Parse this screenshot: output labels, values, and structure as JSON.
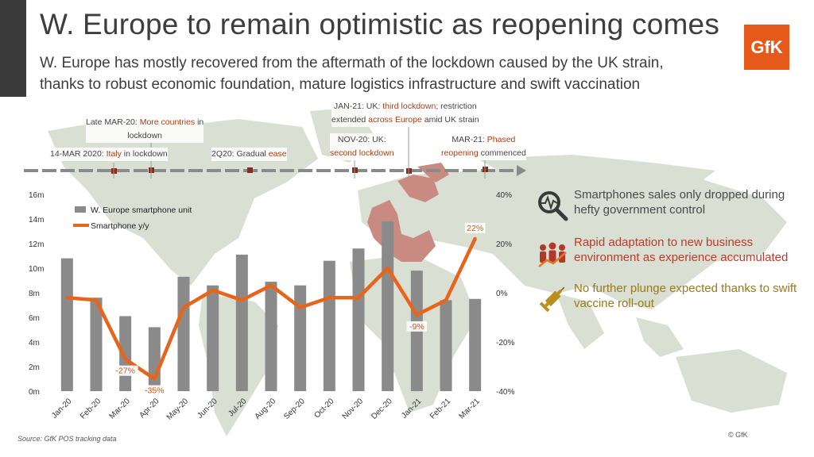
{
  "header": {
    "title": "W. Europe to remain optimistic as reopening comes",
    "subtitle_line1": "W. Europe has mostly recovered from the aftermath of the lockdown caused by the UK strain,",
    "subtitle_line2": "thanks to robust economic foundation, mature logistics infrastructure and swift vaccination",
    "logo_text": "GfK"
  },
  "timeline": {
    "events": [
      {
        "pre": "14-MAR 2020: ",
        "hl": "Italy",
        "post": " in lockdown"
      },
      {
        "pre": "Late MAR-20: ",
        "hl": "More countries",
        "post": " in",
        "line2": "lockdown"
      },
      {
        "pre": "2Q20: Gradual ",
        "hl": "ease",
        "post": ""
      },
      {
        "pre": "NOV-20: UK:",
        "hl": "second lockdown",
        "post": ""
      },
      {
        "pre": "JAN-21: UK: ",
        "hl": "third lockdown",
        "post": "; restriction",
        "line2_pre": "extended ",
        "line2_hl": "across Europe",
        "line2_post": " amid UK strain"
      },
      {
        "pre": "MAR-21: ",
        "hl": "Phased",
        "post": "",
        "line2_hl": "reopening",
        "line2_post": " commenced"
      }
    ]
  },
  "chart_data": {
    "type": "bar+line",
    "categories": [
      "Jan-20",
      "Feb-20",
      "Mar-20",
      "Apr-20",
      "May-20",
      "Jun-20",
      "Jul-20",
      "Aug-20",
      "Sep-20",
      "Oct-20",
      "Nov-20",
      "Dec-20",
      "Jan-21",
      "Feb-21",
      "Mar-21"
    ],
    "series": [
      {
        "name": "W. Europe smartphone unit",
        "type": "bar",
        "axis": "left",
        "values": [
          10.8,
          7.6,
          6.1,
          5.2,
          9.3,
          8.6,
          11.1,
          8.9,
          8.6,
          10.6,
          11.6,
          13.8,
          9.8,
          7.4,
          7.5
        ]
      },
      {
        "name": "Smartphone y/y",
        "type": "line",
        "axis": "right",
        "values": [
          -2,
          -3,
          -27,
          -35,
          -6,
          1,
          -3,
          3,
          -6,
          -2,
          -2,
          10,
          -9,
          -3,
          22
        ]
      }
    ],
    "y_left": {
      "min": 0,
      "max": 16,
      "ticks": [
        "0m",
        "2m",
        "4m",
        "6m",
        "8m",
        "10m",
        "12m",
        "14m",
        "16m"
      ]
    },
    "y_right": {
      "min": -40,
      "max": 40,
      "ticks": [
        "-40%",
        "-20%",
        "0%",
        "20%",
        "40%"
      ]
    },
    "data_labels": [
      {
        "index": 2,
        "text": "-27%"
      },
      {
        "index": 3,
        "text": "-35%"
      },
      {
        "index": 12,
        "text": "-9%"
      },
      {
        "index": 14,
        "text": "22%"
      }
    ],
    "legend": {
      "bar": "W. Europe smartphone unit",
      "line": "Smartphone y/y"
    },
    "colors": {
      "bar": "#8a8a8a",
      "line": "#e8641b",
      "label_bg": "#ffffff"
    }
  },
  "callouts": [
    {
      "icon": "search-pulse-icon",
      "text": "Smartphones sales only dropped during hefty government control"
    },
    {
      "icon": "people-growth-icon",
      "text": "Rapid adaptation to new business environment as experience accumulated"
    },
    {
      "icon": "vaccine-syringe-icon",
      "text": "No further plunge expected thanks to swift vaccine roll-out"
    }
  ],
  "footer": {
    "source": "Source: GfK POS tracking data",
    "copyright": "© GfK"
  }
}
